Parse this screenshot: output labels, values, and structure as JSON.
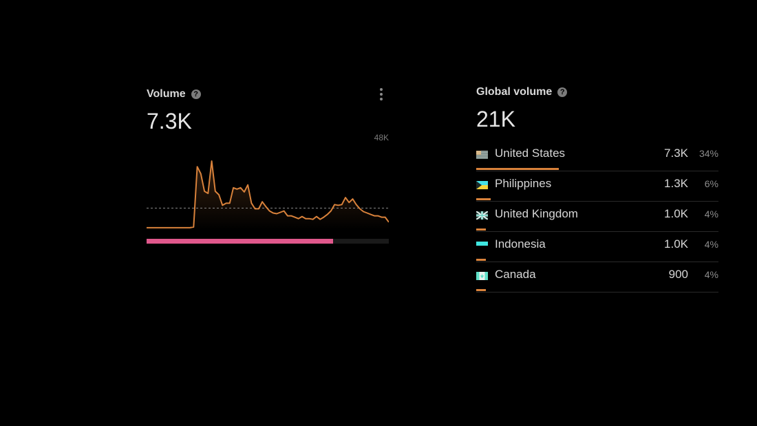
{
  "volume": {
    "title": "Volume",
    "value": "7.3K",
    "chart_max_label": "48K",
    "help_icon": "help-icon",
    "more_icon": "more-vertical-icon",
    "progress": 0.77,
    "colors": {
      "line": "#d9823b",
      "avg": "#8a8a8a",
      "progress": "#e0588c"
    }
  },
  "chart_data": {
    "type": "area",
    "ylim": [
      0,
      48000
    ],
    "reference_line": 0.31,
    "values": [
      0.03,
      0.03,
      0.03,
      0.03,
      0.03,
      0.03,
      0.03,
      0.03,
      0.03,
      0.03,
      0.03,
      0.03,
      0.03,
      0.04,
      0.9,
      0.8,
      0.55,
      0.52,
      0.98,
      0.55,
      0.5,
      0.35,
      0.38,
      0.38,
      0.6,
      0.58,
      0.6,
      0.54,
      0.64,
      0.38,
      0.3,
      0.3,
      0.4,
      0.33,
      0.27,
      0.24,
      0.23,
      0.25,
      0.27,
      0.2,
      0.2,
      0.18,
      0.16,
      0.19,
      0.16,
      0.16,
      0.15,
      0.19,
      0.15,
      0.18,
      0.22,
      0.27,
      0.36,
      0.35,
      0.36,
      0.46,
      0.39,
      0.44,
      0.36,
      0.3,
      0.26,
      0.24,
      0.22,
      0.2,
      0.2,
      0.18,
      0.18,
      0.11
    ]
  },
  "global": {
    "title": "Global volume",
    "value": "21K",
    "help_icon": "help-icon",
    "countries": [
      {
        "name": "United States",
        "value": "7.3K",
        "pct": "34%",
        "share": 0.34,
        "flag": "us-flag-icon"
      },
      {
        "name": "Philippines",
        "value": "1.3K",
        "pct": "6%",
        "share": 0.06,
        "flag": "ph-flag-icon"
      },
      {
        "name": "United Kingdom",
        "value": "1.0K",
        "pct": "4%",
        "share": 0.04,
        "flag": "uk-flag-icon"
      },
      {
        "name": "Indonesia",
        "value": "1.0K",
        "pct": "4%",
        "share": 0.04,
        "flag": "id-flag-icon"
      },
      {
        "name": "Canada",
        "value": "900",
        "pct": "4%",
        "share": 0.04,
        "flag": "ca-flag-icon"
      }
    ]
  }
}
